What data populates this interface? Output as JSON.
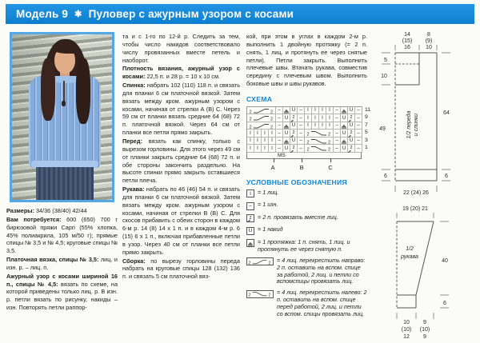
{
  "header": {
    "model": "Модель 9",
    "star": "✱",
    "title": "Пуловер с ажурным узором с косами"
  },
  "colors": {
    "accent": "#0d87da",
    "header_blue": "#1186d9",
    "photo_border": "#55a8e6",
    "sweater_blue": "#84abdc"
  },
  "col1": {
    "paras": [
      {
        "label": "Размеры:",
        "text": " 34/36 (38/40) 42/44"
      },
      {
        "label": "Вам потребуется:",
        "text": " 600 (650) 700 г бирюзовой пряжи Capri (55% хлопка, 45% полиакрила, 105 м/50 г); прямые спицы № 3,5 и № 4,5; круговые спицы № 3,5."
      },
      {
        "label": "Платочная вязка, спицы № 3,5:",
        "text": " лиц. и изн. р. – лиц. п."
      },
      {
        "label": "Ажурный узор с косами шириной 16 п., спицы № 4,5:",
        "text": " вязать по схеме, на которой приведены только лиц. р. В изн. р. петли вязать по рисунку, накиды – изн. Повторять петли раппор-"
      }
    ]
  },
  "col2": {
    "paras": [
      {
        "label": "",
        "text": "та и с 1-го по 12-й р. Следить за тем, чтобы число накидов соответствовало числу провязанных вместе петель и наоборот."
      },
      {
        "label": "Плотность вязания, ажурный узор с косами:",
        "text": " 22,5 п. и 28 р. = 10 x 10 см."
      },
      {
        "label": "Спинка:",
        "text": " набрать 102 (110) 118 п. и связать для планки 6 см платочной вязкой. Затем вязать между кром. ажурным узором с косами, начиная от стрелки А (В) С. Через 59 см от планки вязать средние 64 (68) 72 п. платочной вязкой. Через 64 см от планки все петли прямо закрыть."
      },
      {
        "label": "Перед:",
        "text": " вязать как спинку, только с вырезом горловины. Для этого через 49 см от планки закрыть средние 64 (68) 72 п. и обе стороны закончить раздельно. На высоте спинки прямо закрыть оставшиеся петли плеча."
      },
      {
        "label": "Рукава:",
        "text": " набрать по 46 (46) 54 п. и связать для планки 6 см платочной вязкой. Затем вязать между кром. ажурным узором с косами, начиная от стрелки В (В) С. Для скосов прибавить с обеих сторон в каждом 6-м р. 14 (8) 14 x 1 п. и в каждом 4-м р. 6 (15) 6 x 1 п., включая прибавленные петли в узор. Через 40 см от планки все петли прямо закрыть."
      },
      {
        "label": "Сборка:",
        "text": " по вырезу горловины переда набрать на круговые спицы 128 (132) 136 п. и связать 5 см платочной вяз-"
      }
    ]
  },
  "col3": {
    "paras": [
      {
        "label": "",
        "text": "кой, при этом в углах в каждом 2-м р. выполнить 1 двойную протяжку (= 2 п. снять, 1 лиц. и протянуть ее через снятые петли). Петли закрыть. Выполнить плечевые швы. Втачать рукава, совместив середину с плечевым швом. Выполнить боковые швы и швы рукавов."
      }
    ]
  },
  "schema": {
    "heading": "СХЕМА",
    "row_numbers": [
      "11",
      "9",
      "7",
      "5",
      "3",
      "1"
    ],
    "rows": [
      [
        "c4r",
        "p",
        "sl",
        "yo",
        "p",
        "k",
        "k",
        "k",
        "k",
        "p",
        "sl",
        "yo",
        "p"
      ],
      [
        "c4r",
        "p",
        "yo",
        "k2",
        "p",
        "k",
        "k",
        "k",
        "k",
        "p",
        "yo",
        "k2",
        "p"
      ],
      [
        "c4r",
        "p",
        "sl",
        "yo",
        "p",
        "k",
        "k",
        "k",
        "k",
        "p",
        "sl",
        "yo",
        "p"
      ],
      [
        "k",
        "k",
        "k",
        "k",
        "p",
        "yo",
        "k2",
        "p",
        "c4l",
        "p",
        "yo",
        "k2",
        "p"
      ],
      [
        "k",
        "k",
        "k",
        "k",
        "p",
        "sl",
        "yo",
        "p",
        "c4l",
        "p",
        "sl",
        "yo",
        "p"
      ],
      [
        "k",
        "k",
        "k",
        "k",
        "p",
        "yo",
        "k2",
        "p",
        "c4l",
        "p",
        "yo",
        "k2",
        "p"
      ]
    ],
    "ms_label": "MS",
    "markers": [
      "А",
      "В",
      "С"
    ]
  },
  "legend": {
    "heading": "УСЛОВНЫЕ ОБОЗНАЧЕНИЯ",
    "items": [
      {
        "sym": "k",
        "text": "= 1 лиц."
      },
      {
        "sym": "p",
        "text": "= 1 изн."
      },
      {
        "sym": "k2",
        "text": "= 2 п. провязать вместе лиц."
      },
      {
        "sym": "yo",
        "text": "= 1 накид"
      },
      {
        "sym": "sl",
        "text": "= 1 протяжка: 1 п. снять, 1 лиц. и протянуть ее через снятую п."
      },
      {
        "sym": "c4r",
        "text": "= 4 лиц. перекрестить направо: 2 п. оставить на вспом. спице за работой, 2 лиц. и петли со вспомспицы провязать лиц."
      },
      {
        "sym": "c4l",
        "text": "= 4 лиц. перекрестить налево: 2 п. оставить на вспом. спице перед работой, 2 лиц. и петли со вспом. спицы провязать лиц."
      }
    ]
  },
  "diagrams": {
    "body": {
      "label1": "1/2 переда",
      "label2": "и спинки",
      "top_left": [
        "14",
        "(15)",
        "16"
      ],
      "top_right": [
        "8",
        "(9)",
        "10"
      ],
      "left_5": "5",
      "left_10": "10",
      "left_49": "49",
      "left_6": "6",
      "right_64": "64",
      "right_6": "6",
      "bottom": "22 (24) 26"
    },
    "sleeve": {
      "label1": "1/2",
      "label2": "рукава",
      "top": "19 (20) 21",
      "right_40": "40",
      "right_6": "6",
      "bottom_left": [
        "10",
        "(10)",
        "12"
      ],
      "bottom_right": [
        "9",
        "(10)",
        "9"
      ]
    }
  }
}
